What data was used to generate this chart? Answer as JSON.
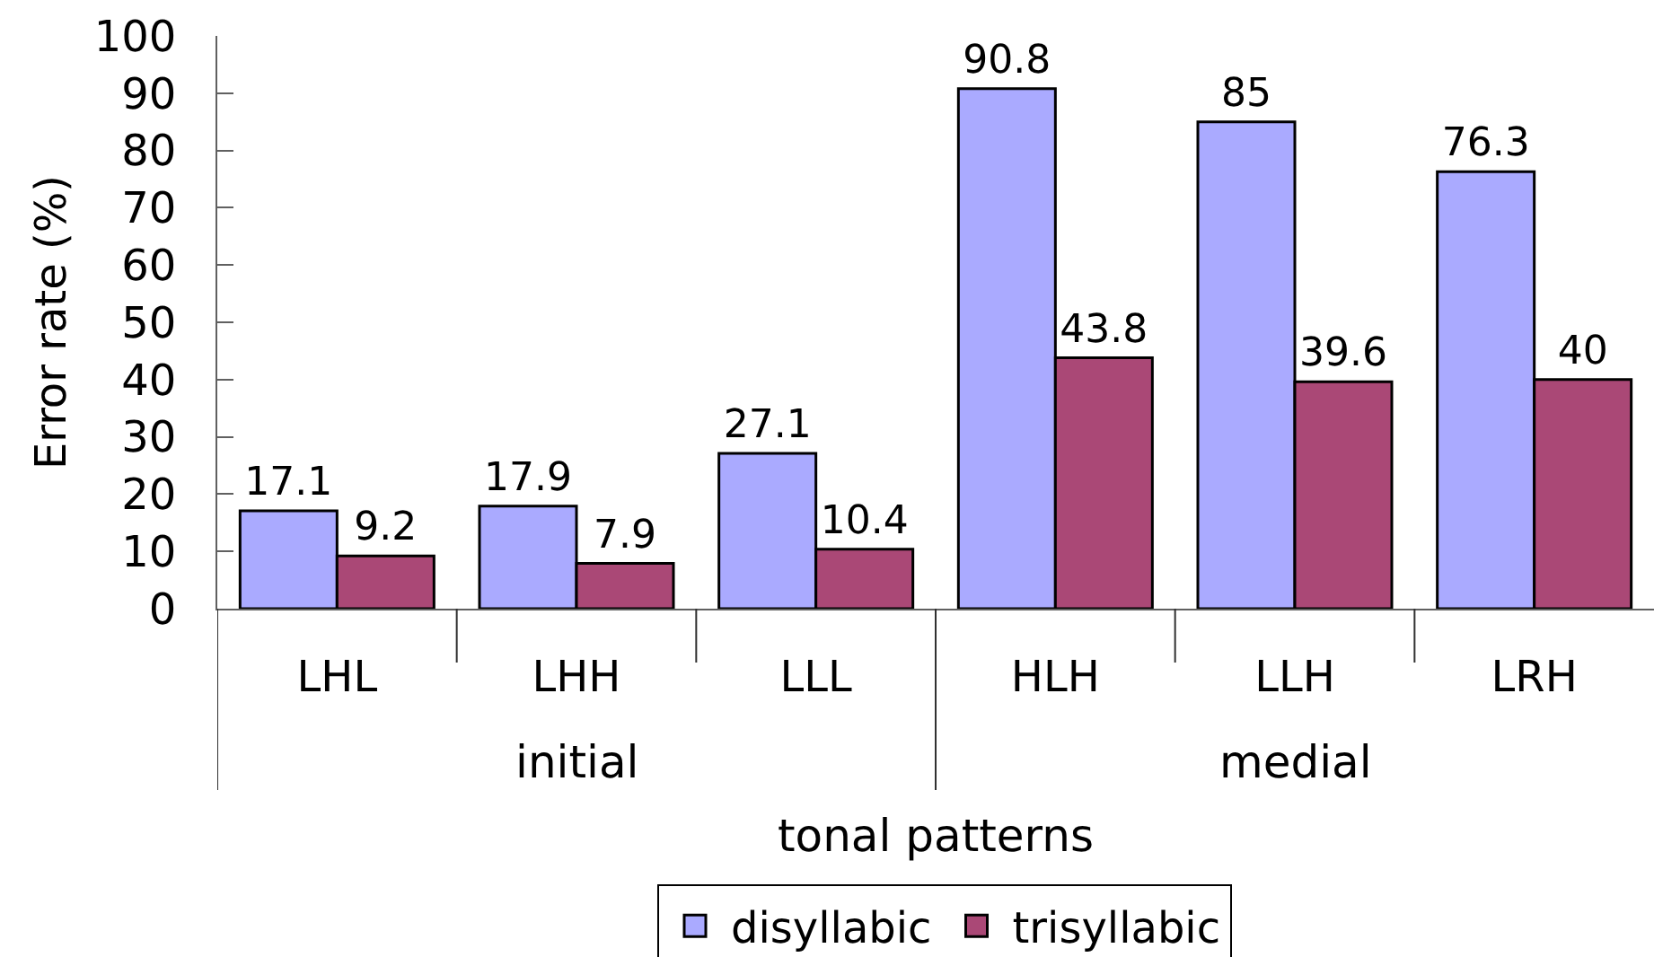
{
  "chart_data": {
    "type": "bar",
    "xlabel": "tonal patterns",
    "ylabel": "Error rate (%)",
    "categories": [
      "LHL",
      "LHH",
      "LLL",
      "HLH",
      "LLH",
      "LRH"
    ],
    "series": [
      {
        "name": "disyllabic",
        "color": "#aaaaff",
        "values": [
          17.1,
          17.9,
          27.1,
          90.8,
          85,
          76.3
        ]
      },
      {
        "name": "trisyllabic",
        "color": "#aa4876",
        "values": [
          9.2,
          7.9,
          10.4,
          43.8,
          39.6,
          40
        ]
      }
    ],
    "ylim": [
      0,
      100
    ],
    "yticks": [
      0,
      10,
      20,
      30,
      40,
      50,
      60,
      70,
      80,
      90,
      100
    ],
    "legend": "bottom",
    "data_labels": true,
    "annotations": [
      "initial",
      "medial"
    ]
  }
}
